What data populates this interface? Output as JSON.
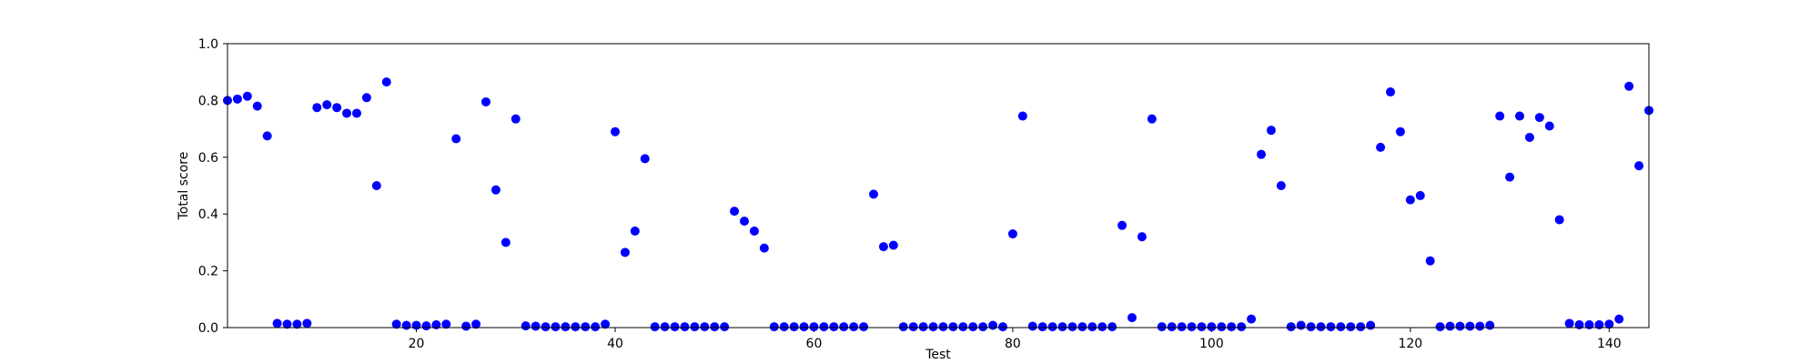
{
  "chart_data": {
    "type": "scatter",
    "title": "",
    "xlabel": "Test",
    "ylabel": "Total score",
    "xlim": [
      1,
      144
    ],
    "ylim": [
      0,
      1
    ],
    "x_ticks": [
      20,
      40,
      60,
      80,
      100,
      120,
      140
    ],
    "x_tick_labels": [
      "20",
      "40",
      "60",
      "80",
      "100",
      "120",
      "140"
    ],
    "y_ticks": [
      0,
      0.2,
      0.4,
      0.6,
      0.8,
      1.0
    ],
    "y_tick_labels": [
      "0.0",
      "0.2",
      "0.4",
      "0.6",
      "0.8",
      "1.0"
    ],
    "grid": false,
    "marker_color": "#0000ff",
    "series": [
      {
        "x": [
          1,
          2,
          3,
          4,
          5,
          6,
          7,
          8,
          9,
          10,
          11,
          12,
          13,
          14,
          15,
          16,
          17,
          18,
          19,
          20,
          21,
          22,
          23,
          24,
          25,
          26,
          27,
          28,
          29,
          30,
          31,
          32,
          33,
          34,
          35,
          36,
          37,
          38,
          39,
          40,
          41,
          42,
          43,
          44,
          45,
          46,
          47,
          48,
          49,
          50,
          51,
          52,
          53,
          54,
          55,
          56,
          57,
          58,
          59,
          60,
          61,
          62,
          63,
          64,
          65,
          66,
          67,
          68,
          69,
          70,
          71,
          72,
          73,
          74,
          75,
          76,
          77,
          78,
          79,
          80,
          81,
          82,
          83,
          84,
          85,
          86,
          87,
          88,
          89,
          90,
          91,
          92,
          93,
          94,
          95,
          96,
          97,
          98,
          99,
          100,
          101,
          102,
          103,
          104,
          105,
          106,
          107,
          108,
          109,
          110,
          111,
          112,
          113,
          114,
          115,
          116,
          117,
          118,
          119,
          120,
          121,
          122,
          123,
          124,
          125,
          126,
          127,
          128,
          129,
          130,
          131,
          132,
          133,
          134,
          135,
          136,
          137,
          138,
          139,
          140,
          141,
          142,
          143,
          144
        ],
        "y": [
          0.8,
          0.805,
          0.815,
          0.78,
          0.675,
          0.015,
          0.012,
          0.012,
          0.015,
          0.775,
          0.785,
          0.775,
          0.755,
          0.755,
          0.81,
          0.5,
          0.865,
          0.012,
          0.008,
          0.008,
          0.006,
          0.01,
          0.012,
          0.665,
          0.005,
          0.012,
          0.795,
          0.485,
          0.3,
          0.735,
          0.006,
          0.005,
          0.003,
          0.003,
          0.003,
          0.003,
          0.003,
          0.003,
          0.012,
          0.69,
          0.265,
          0.34,
          0.595,
          0.003,
          0.003,
          0.003,
          0.003,
          0.003,
          0.003,
          0.003,
          0.003,
          0.41,
          0.375,
          0.34,
          0.28,
          0.003,
          0.003,
          0.003,
          0.003,
          0.003,
          0.003,
          0.003,
          0.003,
          0.003,
          0.003,
          0.47,
          0.285,
          0.29,
          0.003,
          0.003,
          0.003,
          0.003,
          0.003,
          0.003,
          0.003,
          0.003,
          0.003,
          0.008,
          0.003,
          0.33,
          0.745,
          0.005,
          0.003,
          0.003,
          0.003,
          0.003,
          0.003,
          0.003,
          0.003,
          0.003,
          0.36,
          0.035,
          0.32,
          0.735,
          0.003,
          0.003,
          0.003,
          0.003,
          0.003,
          0.003,
          0.003,
          0.003,
          0.003,
          0.03,
          0.61,
          0.695,
          0.5,
          0.003,
          0.008,
          0.003,
          0.003,
          0.003,
          0.003,
          0.003,
          0.003,
          0.008,
          0.635,
          0.83,
          0.69,
          0.45,
          0.465,
          0.235,
          0.003,
          0.005,
          0.005,
          0.005,
          0.005,
          0.008,
          0.745,
          0.53,
          0.745,
          0.67,
          0.74,
          0.71,
          0.38,
          0.015,
          0.01,
          0.01,
          0.01,
          0.012,
          0.03,
          0.85,
          0.57,
          0.765
        ]
      }
    ]
  }
}
